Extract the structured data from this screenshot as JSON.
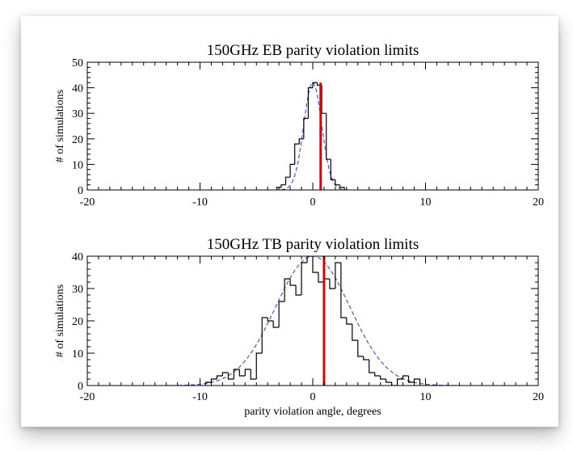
{
  "chart_data": [
    {
      "type": "histogram",
      "title": "150GHz EB parity violation limits",
      "xlabel": "",
      "ylabel": "# of simulations",
      "xlim": [
        -20,
        20
      ],
      "ylim": [
        0,
        50
      ],
      "xticks": [
        -20,
        -10,
        0,
        10,
        20
      ],
      "yticks": [
        0,
        10,
        20,
        30,
        40,
        50
      ],
      "histogram": {
        "edges": [
          -3.2,
          -2.8,
          -2.4,
          -2.0,
          -1.6,
          -1.2,
          -0.8,
          -0.4,
          0.0,
          0.4,
          0.8,
          1.2,
          1.6,
          2.0,
          2.4,
          2.8
        ],
        "counts": [
          1,
          2,
          5,
          10,
          18,
          20,
          28,
          40,
          42,
          41,
          30,
          12,
          4,
          2,
          1
        ]
      },
      "gaussian_fit": {
        "mean": 0.0,
        "sigma": 0.8,
        "peak": 42
      },
      "observed_line_x": 0.7,
      "colors": {
        "histogram": "#000000",
        "fit": "#3333cc",
        "marker": "#e00000"
      }
    },
    {
      "type": "histogram",
      "title": "150GHz TB parity violation limits",
      "xlabel": "parity violation angle, degrees",
      "ylabel": "# of simulations",
      "xlim": [
        -20,
        20
      ],
      "ylim": [
        0,
        40
      ],
      "xticks": [
        -20,
        -10,
        0,
        10,
        20
      ],
      "yticks": [
        0,
        10,
        20,
        30,
        40
      ],
      "histogram": {
        "edges": [
          -9.5,
          -9.0,
          -8.5,
          -8.0,
          -7.5,
          -7.0,
          -6.5,
          -6.0,
          -5.5,
          -5.0,
          -4.5,
          -4.0,
          -3.5,
          -3.0,
          -2.5,
          -2.0,
          -1.5,
          -1.0,
          -0.5,
          0.0,
          0.5,
          1.0,
          1.5,
          2.0,
          2.5,
          3.0,
          3.5,
          4.0,
          4.5,
          5.0,
          5.5,
          6.0,
          6.5,
          7.0,
          7.5,
          8.0,
          8.5,
          9.0,
          9.5
        ],
        "counts": [
          1,
          2,
          3,
          4,
          2,
          5,
          3,
          5,
          2,
          10,
          21,
          20,
          18,
          26,
          33,
          31,
          28,
          38,
          40,
          35,
          32,
          33,
          30,
          38,
          21,
          19,
          14,
          9,
          8,
          4,
          3,
          2,
          1,
          0,
          2,
          3,
          1,
          2
        ]
      },
      "gaussian_fit": {
        "mean": 0.0,
        "sigma": 3.3,
        "peak": 40
      },
      "observed_line_x": 1.0,
      "colors": {
        "histogram": "#000000",
        "fit": "#3333cc",
        "marker": "#e00000"
      }
    }
  ]
}
